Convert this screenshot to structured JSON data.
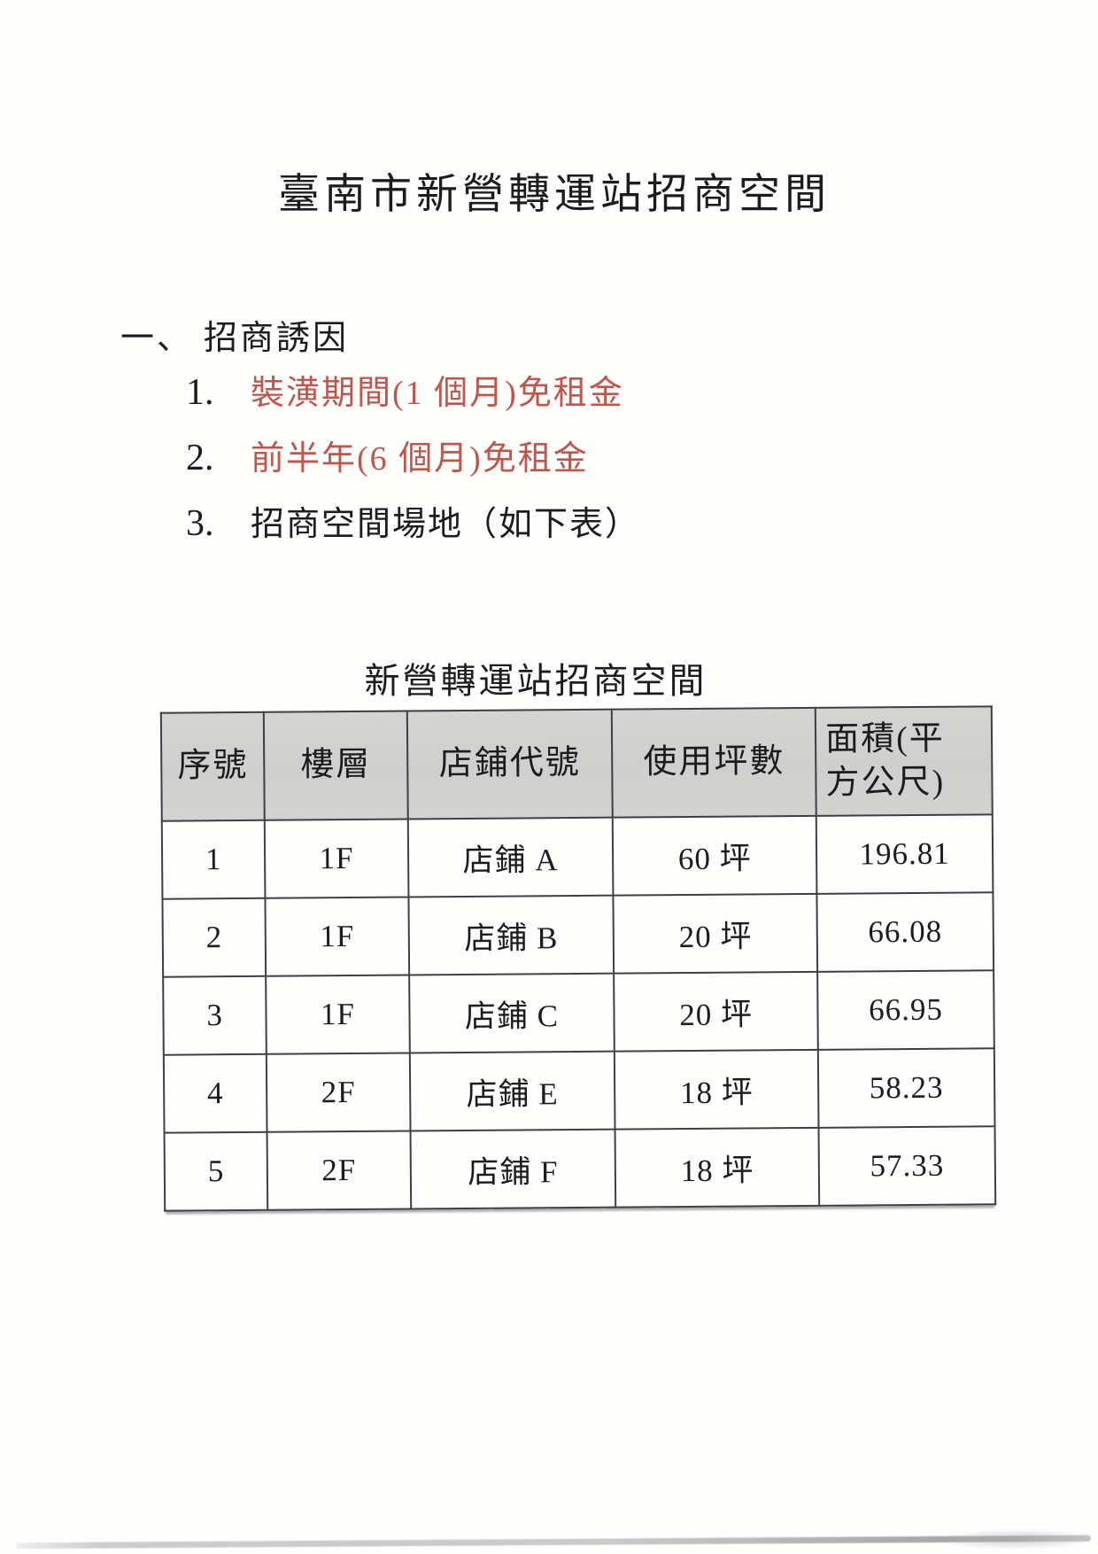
{
  "page": {
    "title": "臺南市新營轉運站招商空間"
  },
  "section": {
    "number_label": "一、",
    "heading": "招商誘因",
    "items": [
      {
        "num": "1.",
        "text": "裝潢期間(1 個月)免租金",
        "tone": "red"
      },
      {
        "num": "2.",
        "text": "前半年(6 個月)免租金",
        "tone": "red"
      },
      {
        "num": "3.",
        "text": "招商空間場地（如下表）",
        "tone": "dark"
      }
    ]
  },
  "table": {
    "title": "新營轉運站招商空間",
    "headers": [
      "序號",
      "樓層",
      "店鋪代號",
      "使用坪數",
      "面積(平\n方公尺)"
    ],
    "rows": [
      [
        "1",
        "1F",
        "店鋪 A",
        "60 坪",
        "196.81"
      ],
      [
        "2",
        "1F",
        "店鋪 B",
        "20 坪",
        "66.08"
      ],
      [
        "3",
        "1F",
        "店鋪 C",
        "20 坪",
        "66.95"
      ],
      [
        "4",
        "2F",
        "店鋪 E",
        "18 坪",
        "58.23"
      ],
      [
        "5",
        "2F",
        "店鋪 F",
        "18 坪",
        "57.33"
      ]
    ]
  },
  "colors": {
    "accent_red": "#c0554c",
    "header_bg": "#d1d1cf",
    "text": "#1c1c1c",
    "border": "#3f3f3f"
  }
}
